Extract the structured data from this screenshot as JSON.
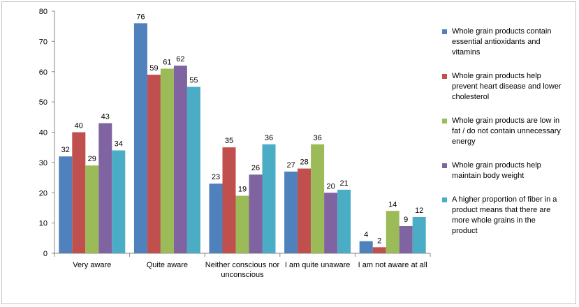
{
  "chart_data": {
    "type": "bar",
    "categories": [
      [
        "Very aware"
      ],
      [
        "Quite aware"
      ],
      [
        "Neither conscious nor",
        "unconscious"
      ],
      [
        "I am quite unaware"
      ],
      [
        "I am not aware at all"
      ]
    ],
    "ylim": [
      0,
      80
    ],
    "yticks": [
      0,
      10,
      20,
      30,
      40,
      50,
      60,
      70,
      80
    ],
    "grid": false,
    "legend_position": "right",
    "series": [
      {
        "name": "Whole grain products contain essential antioxidants and vitamins",
        "color": "#4f81bd",
        "values": [
          32,
          76,
          23,
          27,
          4
        ]
      },
      {
        "name": "Whole grain products help prevent heart disease and lower cholesterol",
        "color": "#c0504d",
        "values": [
          40,
          59,
          35,
          28,
          2
        ]
      },
      {
        "name": "Whole grain products are low in fat / do not contain unnecessary energy",
        "color": "#9bbb59",
        "values": [
          29,
          61,
          19,
          36,
          14
        ]
      },
      {
        "name": "Whole grain products help maintain body weight",
        "color": "#8064a2",
        "values": [
          43,
          62,
          26,
          20,
          9
        ]
      },
      {
        "name": "A higher proportion of fiber in a product means that there are more whole grains in the product",
        "color": "#4bacc6",
        "values": [
          34,
          55,
          36,
          21,
          12
        ]
      }
    ]
  },
  "legend": {
    "items": [
      {
        "lines": [
          "Whole grain products contain",
          "essential antioxidants and",
          "vitamins"
        ]
      },
      {
        "lines": [
          "Whole grain products help",
          "prevent heart disease and lower",
          "cholesterol"
        ]
      },
      {
        "lines": [
          "Whole grain products are low in",
          "fat / do not contain unnecessary",
          "energy"
        ]
      },
      {
        "lines": [
          "Whole grain products help",
          "maintain body weight"
        ]
      },
      {
        "lines": [
          "A higher proportion of fiber in a",
          "product means that there are",
          "more whole grains in the",
          "product"
        ]
      }
    ]
  }
}
